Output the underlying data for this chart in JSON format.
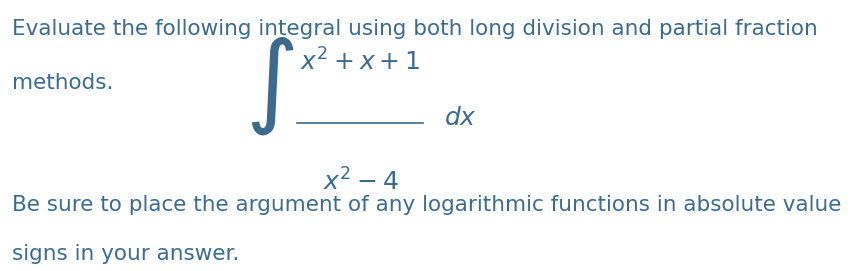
{
  "background_color": "#ffffff",
  "text_color": "#3d6b8e",
  "top_text_line1": "Evaluate the following integral using both long division and partial fraction",
  "top_text_line2": "methods.",
  "bottom_text_line1": "Be sure to place the argument of any logarithmic functions in absolute value",
  "bottom_text_line2": "signs in your answer.",
  "integral_numerator": "$x^2 + x + 1$",
  "integral_denominator": "$x^2 - 4$",
  "integral_dx": "$dx$",
  "font_size_text": 15.5,
  "font_size_math": 18,
  "fig_width": 8.68,
  "fig_height": 2.71
}
